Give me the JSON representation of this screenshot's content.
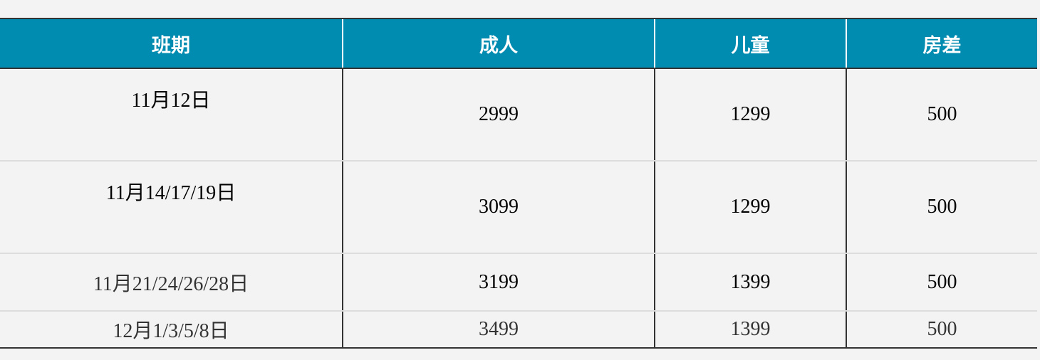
{
  "table": {
    "headers": [
      "班期",
      "成人",
      "儿童",
      "房差"
    ],
    "header_color": "#008bb0",
    "rows": [
      [
        "11月12日",
        "2999",
        "1299",
        "500"
      ],
      [
        "11月14/17/19日",
        "3099",
        "1299",
        "500"
      ],
      [
        "11月21/24/26/28日",
        "3199",
        "1399",
        "500"
      ],
      [
        "12月1/3/5/8日",
        "3499",
        "1399",
        "500"
      ]
    ]
  }
}
